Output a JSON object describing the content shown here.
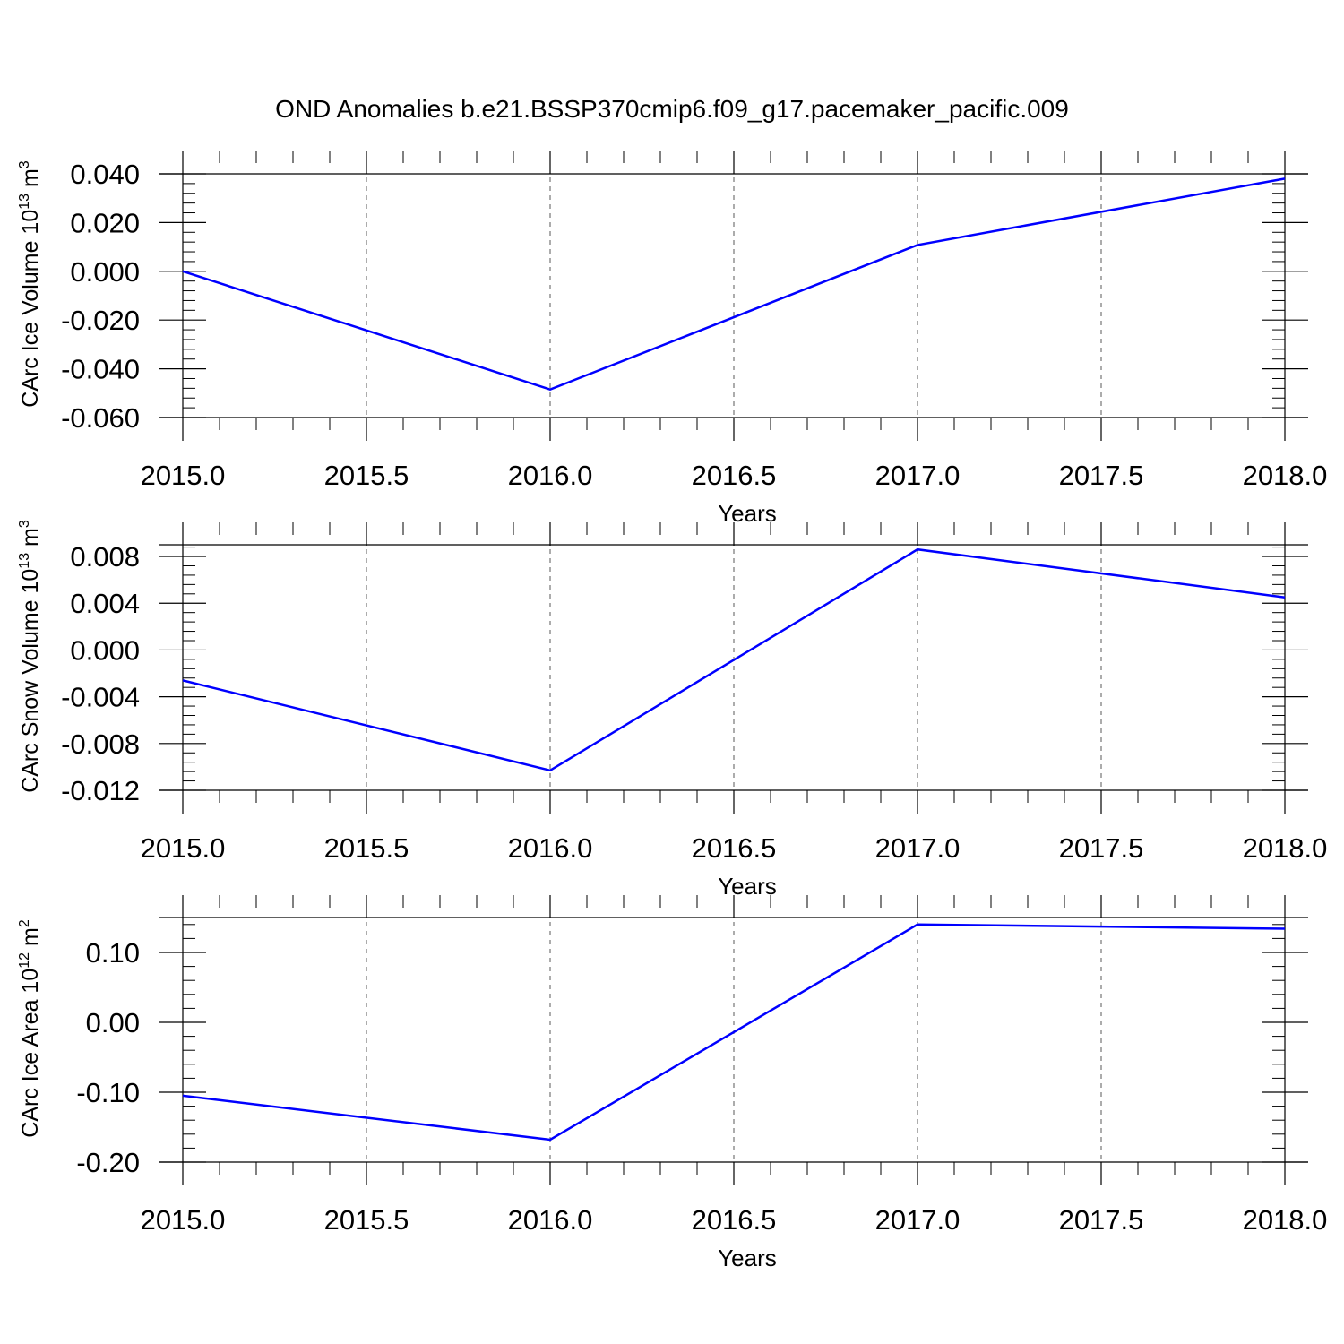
{
  "figure": {
    "title": "OND Anomalies b.e21.BSSP370cmip6.f09_g17.pacemaker_pacific.009"
  },
  "chart_data": [
    {
      "type": "line",
      "title": "",
      "xlabel": "Years",
      "ylabel_main": "CArc Ice Volume 10",
      "ylabel_exp": "13",
      "ylabel_unit": " m",
      "ylabel_unit_exp": "3",
      "x": [
        2015.0,
        2016.0,
        2017.0,
        2018.0
      ],
      "series": [
        {
          "values": [
            0.0,
            -0.0485,
            0.0108,
            0.038
          ],
          "color": "#0000ff"
        }
      ],
      "xlim": [
        2015.0,
        2018.0
      ],
      "ylim": [
        -0.06,
        0.04
      ],
      "xticks": [
        2015.0,
        2015.5,
        2016.0,
        2016.5,
        2017.0,
        2017.5,
        2018.0
      ],
      "xtick_labels": [
        "2015.0",
        "2015.5",
        "2016.0",
        "2016.5",
        "2017.0",
        "2017.5",
        "2018.0"
      ],
      "yticks": [
        -0.06,
        -0.04,
        -0.02,
        0.0,
        0.02,
        0.04
      ],
      "ytick_labels": [
        "-0.060",
        "-0.040",
        "-0.020",
        "0.000",
        "0.020",
        "0.040"
      ],
      "grid": "vertical-dashed"
    },
    {
      "type": "line",
      "title": "",
      "xlabel": "Years",
      "ylabel_main": "CArc Snow Volume 10",
      "ylabel_exp": "13",
      "ylabel_unit": " m",
      "ylabel_unit_exp": "3",
      "x": [
        2015.0,
        2016.0,
        2017.0,
        2018.0
      ],
      "series": [
        {
          "values": [
            -0.0026,
            -0.0103,
            0.0086,
            0.0045
          ],
          "color": "#0000ff"
        }
      ],
      "xlim": [
        2015.0,
        2018.0
      ],
      "ylim": [
        -0.012,
        0.009
      ],
      "xticks": [
        2015.0,
        2015.5,
        2016.0,
        2016.5,
        2017.0,
        2017.5,
        2018.0
      ],
      "xtick_labels": [
        "2015.0",
        "2015.5",
        "2016.0",
        "2016.5",
        "2017.0",
        "2017.5",
        "2018.0"
      ],
      "yticks": [
        -0.012,
        -0.008,
        -0.004,
        0.0,
        0.004,
        0.008
      ],
      "ytick_labels": [
        "-0.012",
        "-0.008",
        "-0.004",
        "0.000",
        "0.004",
        "0.008"
      ],
      "grid": "vertical-dashed"
    },
    {
      "type": "line",
      "title": "",
      "xlabel": "Years",
      "ylabel_main": "CArc Ice Area 10",
      "ylabel_exp": "12",
      "ylabel_unit": " m",
      "ylabel_unit_exp": "2",
      "x": [
        2015.0,
        2016.0,
        2017.0,
        2018.0
      ],
      "series": [
        {
          "values": [
            -0.105,
            -0.168,
            0.14,
            0.134
          ],
          "color": "#0000ff"
        }
      ],
      "xlim": [
        2015.0,
        2018.0
      ],
      "ylim": [
        -0.2,
        0.15
      ],
      "xticks": [
        2015.0,
        2015.5,
        2016.0,
        2016.5,
        2017.0,
        2017.5,
        2018.0
      ],
      "xtick_labels": [
        "2015.0",
        "2015.5",
        "2016.0",
        "2016.5",
        "2017.0",
        "2017.5",
        "2018.0"
      ],
      "yticks": [
        -0.2,
        -0.1,
        0.0,
        0.1
      ],
      "ytick_labels": [
        "-0.20",
        "-0.10",
        "0.00",
        "0.10"
      ],
      "grid": "vertical-dashed"
    }
  ]
}
